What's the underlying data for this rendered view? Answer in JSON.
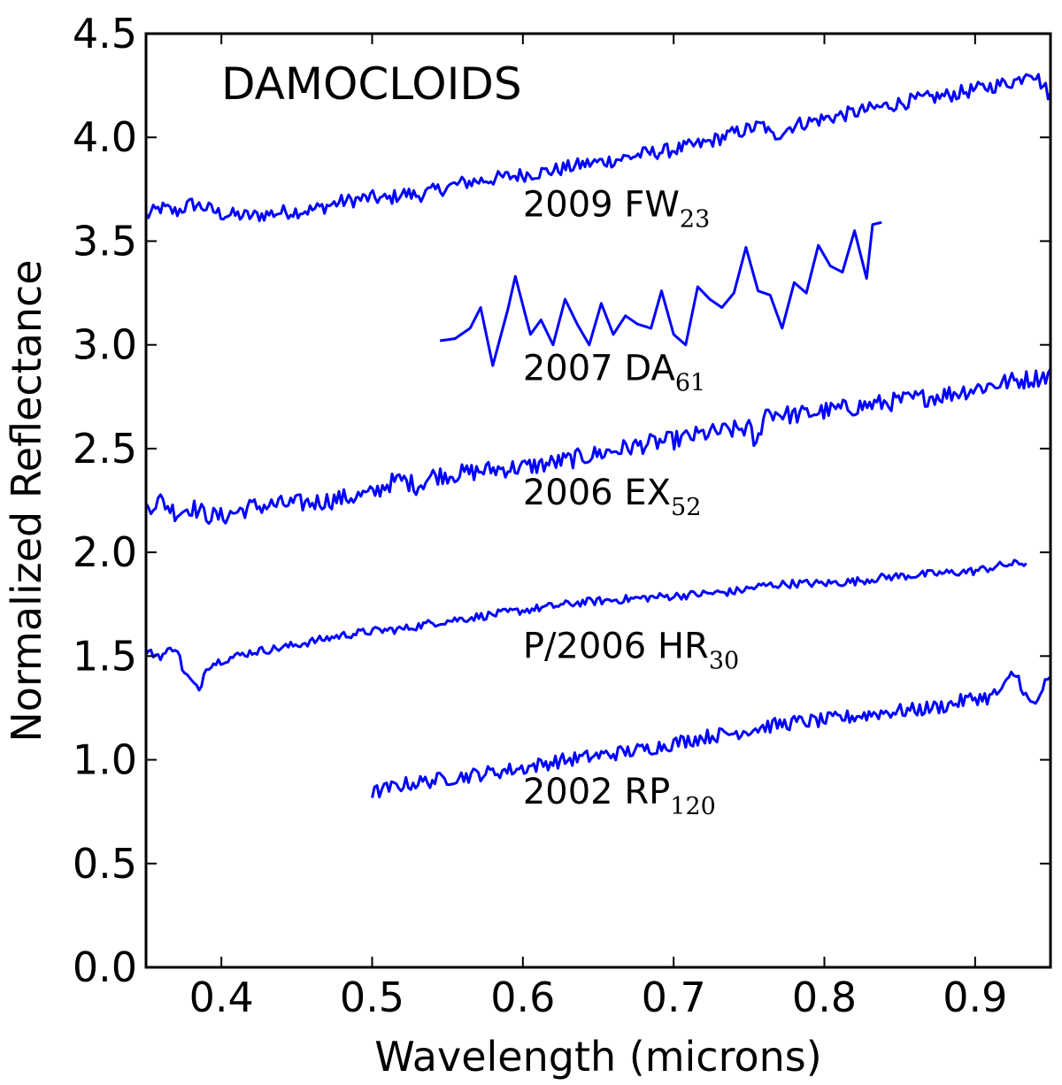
{
  "chart_data": {
    "type": "line",
    "title": "DAMOCLOIDS",
    "xlabel": "Wavelength (microns)",
    "ylabel": "Normalized Reflectance",
    "xlim": [
      0.35,
      0.95
    ],
    "ylim": [
      0.0,
      4.5
    ],
    "xticks": [
      "0.4",
      "0.5",
      "0.6",
      "0.7",
      "0.8",
      "0.9"
    ],
    "yticks": [
      "0.0",
      "0.5",
      "1.0",
      "1.5",
      "2.0",
      "2.5",
      "3.0",
      "3.5",
      "4.0",
      "4.5"
    ],
    "line_color": "#0000ff",
    "grid": false,
    "series": [
      {
        "name": "2009 FW23",
        "label_main": "2009 FW",
        "label_sub": "23",
        "label_pos": [
          0.6,
          3.62
        ],
        "x": [
          0.35,
          0.36,
          0.37,
          0.38,
          0.39,
          0.4,
          0.42,
          0.44,
          0.46,
          0.48,
          0.5,
          0.51,
          0.52,
          0.53,
          0.54,
          0.56,
          0.58,
          0.6,
          0.62,
          0.64,
          0.66,
          0.68,
          0.7,
          0.72,
          0.74,
          0.755,
          0.76,
          0.765,
          0.78,
          0.8,
          0.82,
          0.84,
          0.86,
          0.88,
          0.9,
          0.92,
          0.93,
          0.935,
          0.94,
          0.95
        ],
        "y": [
          3.62,
          3.66,
          3.64,
          3.68,
          3.66,
          3.63,
          3.62,
          3.64,
          3.65,
          3.69,
          3.71,
          3.7,
          3.73,
          3.72,
          3.74,
          3.78,
          3.8,
          3.82,
          3.84,
          3.87,
          3.89,
          3.92,
          3.94,
          3.97,
          4.02,
          4.05,
          4.06,
          4.0,
          4.06,
          4.09,
          4.12,
          4.15,
          4.18,
          4.2,
          4.23,
          4.26,
          4.28,
          4.33,
          4.3,
          4.2
        ],
        "noise": 0.035
      },
      {
        "name": "2007 DA61",
        "label_main": "2007 DA",
        "label_sub": "61",
        "label_pos": [
          0.6,
          2.83
        ],
        "x": [
          0.545,
          0.555,
          0.565,
          0.572,
          0.58,
          0.59,
          0.595,
          0.605,
          0.612,
          0.62,
          0.628,
          0.636,
          0.644,
          0.652,
          0.66,
          0.668,
          0.676,
          0.685,
          0.692,
          0.7,
          0.708,
          0.716,
          0.724,
          0.732,
          0.74,
          0.748,
          0.756,
          0.764,
          0.772,
          0.78,
          0.788,
          0.796,
          0.804,
          0.812,
          0.82,
          0.828,
          0.832,
          0.838
        ],
        "y": [
          3.02,
          3.03,
          3.08,
          3.18,
          2.9,
          3.17,
          3.33,
          3.05,
          3.12,
          3.0,
          3.22,
          3.1,
          3.0,
          3.2,
          3.05,
          3.14,
          3.1,
          3.08,
          3.26,
          3.05,
          3.0,
          3.28,
          3.22,
          3.18,
          3.25,
          3.47,
          3.26,
          3.24,
          3.08,
          3.3,
          3.25,
          3.48,
          3.38,
          3.35,
          3.55,
          3.32,
          3.58,
          3.59
        ],
        "noise": 0.0
      },
      {
        "name": "2006 EX52",
        "label_main": "2006 EX",
        "label_sub": "52",
        "label_pos": [
          0.6,
          2.23
        ],
        "x": [
          0.35,
          0.36,
          0.37,
          0.38,
          0.39,
          0.4,
          0.42,
          0.44,
          0.46,
          0.48,
          0.5,
          0.51,
          0.52,
          0.53,
          0.54,
          0.56,
          0.58,
          0.6,
          0.62,
          0.64,
          0.66,
          0.68,
          0.7,
          0.72,
          0.74,
          0.75,
          0.755,
          0.76,
          0.78,
          0.8,
          0.82,
          0.84,
          0.86,
          0.88,
          0.9,
          0.92,
          0.94,
          0.95
        ],
        "y": [
          2.22,
          2.25,
          2.19,
          2.22,
          2.18,
          2.17,
          2.22,
          2.23,
          2.24,
          2.26,
          2.28,
          2.33,
          2.35,
          2.32,
          2.37,
          2.38,
          2.4,
          2.41,
          2.43,
          2.46,
          2.49,
          2.52,
          2.54,
          2.57,
          2.59,
          2.6,
          2.5,
          2.68,
          2.66,
          2.68,
          2.7,
          2.72,
          2.74,
          2.76,
          2.79,
          2.82,
          2.84,
          2.86
        ],
        "noise": 0.045
      },
      {
        "name": "P/2006 HR30",
        "label_main": "P/2006 HR",
        "label_sub": "30",
        "label_pos": [
          0.6,
          1.49
        ],
        "x": [
          0.35,
          0.36,
          0.37,
          0.375,
          0.38,
          0.385,
          0.39,
          0.4,
          0.42,
          0.44,
          0.46,
          0.48,
          0.5,
          0.52,
          0.54,
          0.56,
          0.58,
          0.6,
          0.62,
          0.64,
          0.66,
          0.68,
          0.7,
          0.72,
          0.74,
          0.76,
          0.78,
          0.8,
          0.82,
          0.84,
          0.86,
          0.88,
          0.9,
          0.92,
          0.935
        ],
        "y": [
          1.52,
          1.5,
          1.55,
          1.42,
          1.38,
          1.33,
          1.45,
          1.48,
          1.52,
          1.54,
          1.57,
          1.6,
          1.62,
          1.63,
          1.66,
          1.68,
          1.7,
          1.72,
          1.74,
          1.76,
          1.77,
          1.78,
          1.79,
          1.8,
          1.81,
          1.84,
          1.85,
          1.85,
          1.86,
          1.88,
          1.89,
          1.9,
          1.91,
          1.94,
          1.95
        ],
        "noise": 0.02
      },
      {
        "name": "2002 RP120",
        "label_main": "2002 RP",
        "label_sub": "120",
        "label_pos": [
          0.6,
          0.79
        ],
        "x": [
          0.5,
          0.52,
          0.54,
          0.56,
          0.58,
          0.6,
          0.62,
          0.64,
          0.66,
          0.68,
          0.7,
          0.72,
          0.74,
          0.76,
          0.78,
          0.8,
          0.82,
          0.84,
          0.86,
          0.88,
          0.9,
          0.91,
          0.92,
          0.925,
          0.93,
          0.935,
          0.94,
          0.945,
          0.95
        ],
        "y": [
          0.84,
          0.88,
          0.9,
          0.92,
          0.94,
          0.96,
          0.99,
          1.01,
          1.03,
          1.05,
          1.08,
          1.11,
          1.13,
          1.16,
          1.18,
          1.19,
          1.21,
          1.23,
          1.24,
          1.26,
          1.3,
          1.3,
          1.35,
          1.42,
          1.38,
          1.28,
          1.26,
          1.35,
          1.38
        ],
        "noise": 0.035
      }
    ]
  }
}
